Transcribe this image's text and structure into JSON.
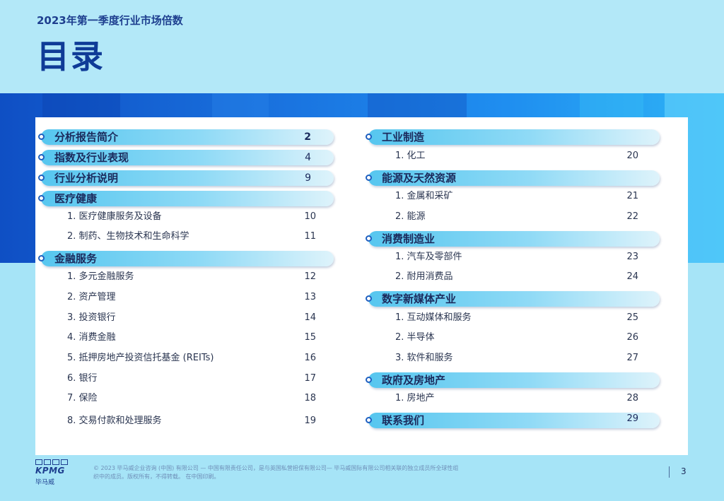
{
  "header": {
    "subtitle": "2023年第一季度行业市场倍数",
    "title": "目录"
  },
  "toc": {
    "left": {
      "sec_intro": {
        "label": "分析报告简介",
        "page": "2"
      },
      "sec_index": {
        "label": "指数及行业表现",
        "page": "4"
      },
      "sec_method": {
        "label": "行业分析说明",
        "page": "9"
      },
      "sec_health": {
        "label": "医疗健康"
      },
      "health_items": [
        {
          "label": "1. 医疗健康服务及设备",
          "page": "10"
        },
        {
          "label": "2. 制药、生物技术和生命科学",
          "page": "11"
        }
      ],
      "sec_finance": {
        "label": "金融服务"
      },
      "finance_items": [
        {
          "label": "1. 多元金融服务",
          "page": "12"
        },
        {
          "label": "2. 资产管理",
          "page": "13"
        },
        {
          "label": "3. 投资银行",
          "page": "14"
        },
        {
          "label": "4. 消费金融",
          "page": "15"
        },
        {
          "label": "5. 抵押房地产投资信托基金 (REITs)",
          "page": "16"
        },
        {
          "label": "6. 银行",
          "page": "17"
        },
        {
          "label": "7. 保险",
          "page": "18"
        },
        {
          "label": "8. 交易付款和处理服务",
          "page": "19"
        }
      ]
    },
    "right": {
      "sec_industrial": {
        "label": "工业制造"
      },
      "industrial_items": [
        {
          "label": "1. 化工",
          "page": "20"
        }
      ],
      "sec_energy": {
        "label": "能源及天然资源"
      },
      "energy_items": [
        {
          "label": "1. 金属和采矿",
          "page": "21"
        },
        {
          "label": "2. 能源",
          "page": "22"
        }
      ],
      "sec_consumer": {
        "label": "消费制造业"
      },
      "consumer_items": [
        {
          "label": "1. 汽车及零部件",
          "page": "23"
        },
        {
          "label": "2. 耐用消费品",
          "page": "24"
        }
      ],
      "sec_digital": {
        "label": "数字新媒体产业"
      },
      "digital_items": [
        {
          "label": "1. 互动媒体和服务",
          "page": "25"
        },
        {
          "label": "2. 半导体",
          "page": "26"
        },
        {
          "label": "3. 软件和服务",
          "page": "27"
        }
      ],
      "sec_gov": {
        "label": "政府及房地产"
      },
      "gov_items": [
        {
          "label": "1. 房地产",
          "page": "28"
        }
      ],
      "sec_contact": {
        "label": "联系我们",
        "page": "29"
      }
    }
  },
  "footer": {
    "logo_text": "KPMG",
    "logo_cn": "毕马威",
    "copyright": "© 2023 毕马威企业咨询 (中国) 有限公司 — 中国有限责任公司，是与英国私营担保有限公司— 毕马威国际有限公司相关联的独立成员所全球性组织中的成员。版权所有，不得转载。 在中国印刷。",
    "page_number": "3"
  },
  "colors": {
    "accent": "#0f3b97",
    "pill_start": "#56c6ef",
    "background": "#a6e4f7"
  }
}
